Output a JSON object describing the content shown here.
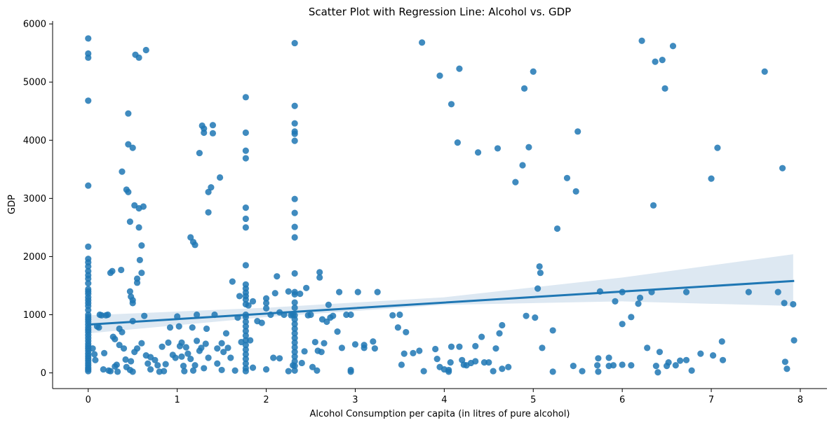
{
  "chart_data": {
    "type": "scatter",
    "title": "Scatter Plot with Regression Line: Alcohol vs. GDP",
    "xlabel": "Alcohol Consumption per capita (in litres of pure alcohol)",
    "ylabel": "GDP",
    "xlim": [
      -0.4,
      8.3
    ],
    "ylim": [
      -270,
      6050
    ],
    "xticks": [
      0,
      1,
      2,
      3,
      4,
      5,
      6,
      7,
      8
    ],
    "yticks": [
      0,
      1000,
      2000,
      3000,
      4000,
      5000,
      6000
    ],
    "grid": false,
    "colors": {
      "points": "#1f77b4",
      "line": "#1f77b4",
      "band": "#b3cde3"
    },
    "regression": {
      "x": [
        0,
        7.92
      ],
      "y": [
        830,
        1580
      ],
      "band_x": [
        0,
        2,
        4,
        6,
        7.92
      ],
      "band_lower": [
        680,
        960,
        1170,
        1230,
        1150
      ],
      "band_upper": [
        990,
        1120,
        1300,
        1640,
        2040
      ]
    },
    "points": [
      [
        0,
        5750
      ],
      [
        0,
        5490
      ],
      [
        0,
        5420
      ],
      [
        0,
        4680
      ],
      [
        0,
        3220
      ],
      [
        0,
        2170
      ],
      [
        0,
        1960
      ],
      [
        0,
        1900
      ],
      [
        0,
        1830
      ],
      [
        0,
        1750
      ],
      [
        0,
        1680
      ],
      [
        0,
        1620
      ],
      [
        0,
        1540
      ],
      [
        0,
        1440
      ],
      [
        0,
        1400
      ],
      [
        0,
        1360
      ],
      [
        0,
        1300
      ],
      [
        0,
        1250
      ],
      [
        0,
        1200
      ],
      [
        0,
        1150
      ],
      [
        0,
        1080
      ],
      [
        0,
        1000
      ],
      [
        0,
        960
      ],
      [
        0,
        920
      ],
      [
        0,
        880
      ],
      [
        0,
        830
      ],
      [
        0,
        780
      ],
      [
        0,
        740
      ],
      [
        0,
        700
      ],
      [
        0,
        650
      ],
      [
        0,
        600
      ],
      [
        0,
        550
      ],
      [
        0,
        500
      ],
      [
        0,
        460
      ],
      [
        0,
        420
      ],
      [
        0,
        380
      ],
      [
        0,
        330
      ],
      [
        0,
        290
      ],
      [
        0,
        250
      ],
      [
        0,
        210
      ],
      [
        0,
        170
      ],
      [
        0,
        130
      ],
      [
        0,
        90
      ],
      [
        0,
        60
      ],
      [
        0,
        30
      ],
      [
        0.05,
        420
      ],
      [
        0.07,
        320
      ],
      [
        0.08,
        220
      ],
      [
        0.1,
        800
      ],
      [
        0.12,
        780
      ],
      [
        0.13,
        1000
      ],
      [
        0.15,
        990
      ],
      [
        0.17,
        60
      ],
      [
        0.18,
        340
      ],
      [
        0.2,
        990
      ],
      [
        0.22,
        1000
      ],
      [
        0.23,
        40
      ],
      [
        0.25,
        30
      ],
      [
        0.25,
        1720
      ],
      [
        0.27,
        1750
      ],
      [
        0.28,
        620
      ],
      [
        0.3,
        580
      ],
      [
        0.3,
        110
      ],
      [
        0.32,
        140
      ],
      [
        0.33,
        20
      ],
      [
        0.35,
        480
      ],
      [
        0.35,
        760
      ],
      [
        0.37,
        1770
      ],
      [
        0.38,
        3460
      ],
      [
        0.38,
        700
      ],
      [
        0.4,
        420
      ],
      [
        0.42,
        230
      ],
      [
        0.43,
        100
      ],
      [
        0.43,
        3150
      ],
      [
        0.45,
        3110
      ],
      [
        0.45,
        3930
      ],
      [
        0.45,
        4460
      ],
      [
        0.47,
        2600
      ],
      [
        0.47,
        1400
      ],
      [
        0.48,
        1310
      ],
      [
        0.5,
        1250
      ],
      [
        0.5,
        1200
      ],
      [
        0.5,
        890
      ],
      [
        0.5,
        3870
      ],
      [
        0.52,
        2880
      ],
      [
        0.53,
        5470
      ],
      [
        0.55,
        1620
      ],
      [
        0.55,
        1550
      ],
      [
        0.57,
        5420
      ],
      [
        0.57,
        2830
      ],
      [
        0.57,
        2500
      ],
      [
        0.58,
        1940
      ],
      [
        0.6,
        2190
      ],
      [
        0.6,
        1720
      ],
      [
        0.62,
        2860
      ],
      [
        0.63,
        980
      ],
      [
        0.65,
        5550
      ],
      [
        0.65,
        300
      ],
      [
        0.67,
        160
      ],
      [
        0.6,
        510
      ],
      [
        0.55,
        420
      ],
      [
        0.52,
        360
      ],
      [
        0.48,
        200
      ],
      [
        0.47,
        50
      ],
      [
        0.5,
        20
      ],
      [
        0.7,
        270
      ],
      [
        0.7,
        60
      ],
      [
        0.75,
        220
      ],
      [
        0.78,
        130
      ],
      [
        0.8,
        20
      ],
      [
        0.83,
        450
      ],
      [
        0.85,
        30
      ],
      [
        0.87,
        150
      ],
      [
        0.9,
        520
      ],
      [
        0.92,
        780
      ],
      [
        0.95,
        310
      ],
      [
        0.98,
        260
      ],
      [
        1.0,
        970
      ],
      [
        1.02,
        800
      ],
      [
        1.03,
        460
      ],
      [
        1.05,
        280
      ],
      [
        1.07,
        120
      ],
      [
        1.1,
        440
      ],
      [
        1.12,
        330
      ],
      [
        1.15,
        240
      ],
      [
        1.15,
        2330
      ],
      [
        1.17,
        780
      ],
      [
        1.18,
        2250
      ],
      [
        1.2,
        2200
      ],
      [
        1.22,
        550
      ],
      [
        1.22,
        1000
      ],
      [
        1.25,
        3780
      ],
      [
        1.27,
        430
      ],
      [
        1.28,
        4250
      ],
      [
        1.3,
        4200
      ],
      [
        1.3,
        4130
      ],
      [
        1.32,
        500
      ],
      [
        1.33,
        760
      ],
      [
        1.35,
        2760
      ],
      [
        1.35,
        3110
      ],
      [
        1.38,
        3190
      ],
      [
        1.4,
        4260
      ],
      [
        1.4,
        4120
      ],
      [
        1.42,
        1000
      ],
      [
        1.45,
        420
      ],
      [
        1.48,
        3360
      ],
      [
        1.5,
        510
      ],
      [
        1.52,
        360
      ],
      [
        1.55,
        680
      ],
      [
        1.57,
        430
      ],
      [
        1.6,
        260
      ],
      [
        1.62,
        1570
      ],
      [
        1.65,
        40
      ],
      [
        1.68,
        950
      ],
      [
        1.7,
        1320
      ],
      [
        1.72,
        530
      ],
      [
        1.2,
        130
      ],
      [
        1.18,
        40
      ],
      [
        1.25,
        380
      ],
      [
        1.3,
        80
      ],
      [
        1.08,
        30
      ],
      [
        1.05,
        520
      ],
      [
        1.35,
        260
      ],
      [
        1.5,
        50
      ],
      [
        1.45,
        160
      ],
      [
        1.77,
        4740
      ],
      [
        1.77,
        4130
      ],
      [
        1.77,
        3820
      ],
      [
        1.77,
        3690
      ],
      [
        1.77,
        2840
      ],
      [
        1.77,
        2650
      ],
      [
        1.77,
        2500
      ],
      [
        1.77,
        1850
      ],
      [
        1.77,
        1520
      ],
      [
        1.77,
        1450
      ],
      [
        1.77,
        1380
      ],
      [
        1.77,
        1320
      ],
      [
        1.77,
        1260
      ],
      [
        1.77,
        1180
      ],
      [
        1.77,
        1000
      ],
      [
        1.77,
        960
      ],
      [
        1.77,
        880
      ],
      [
        1.77,
        800
      ],
      [
        1.77,
        720
      ],
      [
        1.77,
        640
      ],
      [
        1.77,
        560
      ],
      [
        1.77,
        480
      ],
      [
        1.77,
        400
      ],
      [
        1.77,
        320
      ],
      [
        1.77,
        240
      ],
      [
        1.77,
        160
      ],
      [
        1.77,
        80
      ],
      [
        1.77,
        30
      ],
      [
        1.8,
        1160
      ],
      [
        1.82,
        560
      ],
      [
        1.85,
        1230
      ],
      [
        1.85,
        90
      ],
      [
        1.9,
        890
      ],
      [
        1.95,
        860
      ],
      [
        2.0,
        1280
      ],
      [
        2.0,
        1200
      ],
      [
        2.0,
        1110
      ],
      [
        2.0,
        60
      ],
      [
        2.05,
        1000
      ],
      [
        2.08,
        260
      ],
      [
        2.1,
        1370
      ],
      [
        2.12,
        1660
      ],
      [
        2.15,
        1040
      ],
      [
        2.15,
        250
      ],
      [
        2.2,
        1000
      ],
      [
        2.25,
        1400
      ],
      [
        2.25,
        30
      ],
      [
        2.28,
        990
      ],
      [
        2.3,
        1000
      ],
      [
        2.3,
        130
      ],
      [
        2.32,
        5670
      ],
      [
        2.32,
        4590
      ],
      [
        2.32,
        4290
      ],
      [
        2.32,
        4150
      ],
      [
        2.32,
        4110
      ],
      [
        2.32,
        3990
      ],
      [
        2.32,
        2990
      ],
      [
        2.32,
        2750
      ],
      [
        2.32,
        2510
      ],
      [
        2.32,
        2330
      ],
      [
        2.32,
        1710
      ],
      [
        2.32,
        1390
      ],
      [
        2.32,
        1350
      ],
      [
        2.32,
        1210
      ],
      [
        2.32,
        1120
      ],
      [
        2.32,
        990
      ],
      [
        2.32,
        920
      ],
      [
        2.32,
        840
      ],
      [
        2.32,
        760
      ],
      [
        2.32,
        680
      ],
      [
        2.32,
        600
      ],
      [
        2.32,
        520
      ],
      [
        2.32,
        440
      ],
      [
        2.32,
        360
      ],
      [
        2.32,
        280
      ],
      [
        2.32,
        200
      ],
      [
        2.32,
        120
      ],
      [
        2.32,
        40
      ],
      [
        2.38,
        1360
      ],
      [
        2.4,
        170
      ],
      [
        2.43,
        370
      ],
      [
        2.45,
        1460
      ],
      [
        2.47,
        990
      ],
      [
        2.5,
        1000
      ],
      [
        2.52,
        100
      ],
      [
        2.55,
        530
      ],
      [
        2.57,
        40
      ],
      [
        2.58,
        380
      ],
      [
        2.6,
        1730
      ],
      [
        2.6,
        1640
      ],
      [
        2.62,
        360
      ],
      [
        2.63,
        920
      ],
      [
        2.65,
        510
      ],
      [
        2.68,
        880
      ],
      [
        2.7,
        1170
      ],
      [
        2.72,
        950
      ],
      [
        2.75,
        980
      ],
      [
        2.8,
        710
      ],
      [
        2.82,
        1390
      ],
      [
        2.85,
        430
      ],
      [
        2.9,
        1000
      ],
      [
        2.95,
        1000
      ],
      [
        2.95,
        50
      ],
      [
        2.95,
        20
      ],
      [
        3.0,
        490
      ],
      [
        3.03,
        1390
      ],
      [
        3.1,
        480
      ],
      [
        3.1,
        430
      ],
      [
        3.2,
        540
      ],
      [
        3.22,
        420
      ],
      [
        3.25,
        1390
      ],
      [
        3.42,
        990
      ],
      [
        3.48,
        780
      ],
      [
        3.5,
        1000
      ],
      [
        3.52,
        140
      ],
      [
        3.55,
        330
      ],
      [
        3.57,
        700
      ],
      [
        3.65,
        340
      ],
      [
        3.72,
        380
      ],
      [
        3.75,
        5680
      ],
      [
        3.77,
        30
      ],
      [
        3.9,
        410
      ],
      [
        3.92,
        240
      ],
      [
        3.95,
        5110
      ],
      [
        3.95,
        100
      ],
      [
        4.0,
        60
      ],
      [
        4.05,
        50
      ],
      [
        4.05,
        20
      ],
      [
        4.07,
        180
      ],
      [
        4.08,
        4620
      ],
      [
        4.08,
        450
      ],
      [
        4.15,
        3960
      ],
      [
        4.17,
        5230
      ],
      [
        4.17,
        450
      ],
      [
        4.2,
        220
      ],
      [
        4.22,
        140
      ],
      [
        4.25,
        130
      ],
      [
        4.3,
        170
      ],
      [
        4.35,
        200
      ],
      [
        4.38,
        3790
      ],
      [
        4.35,
        460
      ],
      [
        4.42,
        620
      ],
      [
        4.45,
        180
      ],
      [
        4.5,
        180
      ],
      [
        4.55,
        30
      ],
      [
        4.6,
        3860
      ],
      [
        4.58,
        420
      ],
      [
        4.62,
        680
      ],
      [
        4.65,
        820
      ],
      [
        4.65,
        70
      ],
      [
        4.72,
        100
      ],
      [
        4.8,
        3280
      ],
      [
        4.88,
        3570
      ],
      [
        4.9,
        4890
      ],
      [
        4.92,
        980
      ],
      [
        4.95,
        3880
      ],
      [
        5.0,
        5180
      ],
      [
        5.02,
        950
      ],
      [
        5.05,
        1450
      ],
      [
        5.07,
        1830
      ],
      [
        5.08,
        1720
      ],
      [
        5.1,
        430
      ],
      [
        5.22,
        730
      ],
      [
        5.22,
        20
      ],
      [
        5.27,
        2480
      ],
      [
        5.38,
        3350
      ],
      [
        5.45,
        120
      ],
      [
        5.48,
        3120
      ],
      [
        5.5,
        4150
      ],
      [
        5.55,
        30
      ],
      [
        5.72,
        130
      ],
      [
        5.73,
        250
      ],
      [
        5.73,
        20
      ],
      [
        5.75,
        1400
      ],
      [
        5.85,
        120
      ],
      [
        5.85,
        260
      ],
      [
        5.9,
        130
      ],
      [
        5.92,
        1230
      ],
      [
        6.0,
        140
      ],
      [
        6.0,
        1390
      ],
      [
        6.0,
        840
      ],
      [
        6.1,
        130
      ],
      [
        6.1,
        960
      ],
      [
        6.18,
        1190
      ],
      [
        6.2,
        1290
      ],
      [
        6.22,
        5710
      ],
      [
        6.28,
        430
      ],
      [
        6.33,
        1390
      ],
      [
        6.35,
        2880
      ],
      [
        6.37,
        5350
      ],
      [
        6.38,
        120
      ],
      [
        6.4,
        10
      ],
      [
        6.42,
        360
      ],
      [
        6.45,
        5380
      ],
      [
        6.48,
        4890
      ],
      [
        6.5,
        120
      ],
      [
        6.52,
        180
      ],
      [
        6.57,
        5620
      ],
      [
        6.6,
        130
      ],
      [
        6.65,
        210
      ],
      [
        6.72,
        1390
      ],
      [
        6.72,
        220
      ],
      [
        6.78,
        40
      ],
      [
        6.88,
        330
      ],
      [
        7.0,
        3340
      ],
      [
        7.02,
        300
      ],
      [
        7.07,
        3870
      ],
      [
        7.12,
        540
      ],
      [
        7.13,
        220
      ],
      [
        7.42,
        1390
      ],
      [
        7.6,
        5180
      ],
      [
        7.75,
        1390
      ],
      [
        7.8,
        3520
      ],
      [
        7.82,
        1200
      ],
      [
        7.83,
        190
      ],
      [
        7.85,
        70
      ],
      [
        7.92,
        1180
      ],
      [
        7.93,
        560
      ]
    ]
  }
}
